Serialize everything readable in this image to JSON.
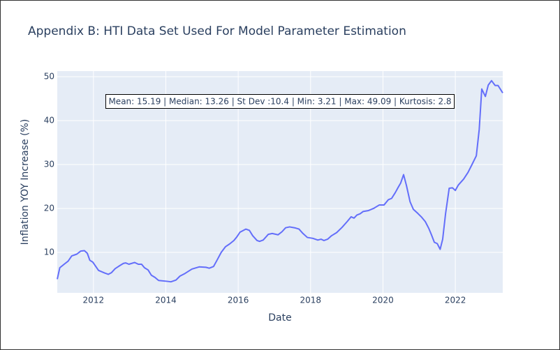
{
  "chart_data": {
    "type": "line",
    "title": "Appendix B: HTI Data Set Used For Model Parameter Estimation",
    "x_label": "Date",
    "y_label": "Inflation YOY Increase (%)",
    "annotation": "Mean: 15.19 | Median: 13.26 | St Dev :10.4 | Min: 3.21 | Max: 49.09 | Kurtosis: 2.8",
    "grid": true,
    "xlim": [
      2011.0,
      2023.31
    ],
    "xticks": [
      2012,
      2014,
      2016,
      2018,
      2020,
      2022
    ],
    "ylim": [
      0.79,
      51.27
    ],
    "yticks": [
      10,
      20,
      30,
      40,
      50
    ],
    "x": [
      2011.0,
      2011.07,
      2011.19,
      2011.3,
      2011.4,
      2011.54,
      2011.65,
      2011.75,
      2011.83,
      2011.9,
      2011.98,
      2012.14,
      2012.31,
      2012.41,
      2012.5,
      2012.6,
      2012.73,
      2012.83,
      2012.89,
      2012.98,
      2013.14,
      2013.24,
      2013.33,
      2013.41,
      2013.51,
      2013.6,
      2013.7,
      2013.8,
      2014.05,
      2014.14,
      2014.28,
      2014.39,
      2014.53,
      2014.72,
      2014.92,
      2015.11,
      2015.2,
      2015.32,
      2015.42,
      2015.53,
      2015.65,
      2015.76,
      2015.88,
      2015.96,
      2016.05,
      2016.21,
      2016.31,
      2016.4,
      2016.52,
      2016.59,
      2016.69,
      2016.83,
      2016.94,
      2017.1,
      2017.21,
      2017.31,
      2017.42,
      2017.56,
      2017.68,
      2017.79,
      2017.91,
      2018.06,
      2018.2,
      2018.29,
      2018.37,
      2018.47,
      2018.58,
      2018.72,
      2018.87,
      2019.01,
      2019.12,
      2019.2,
      2019.28,
      2019.37,
      2019.45,
      2019.59,
      2019.74,
      2019.9,
      2020.03,
      2020.15,
      2020.24,
      2020.34,
      2020.42,
      2020.49,
      2020.57,
      2020.65,
      2020.75,
      2020.84,
      2020.96,
      2021.07,
      2021.17,
      2021.27,
      2021.34,
      2021.42,
      2021.5,
      2021.58,
      2021.65,
      2021.73,
      2021.83,
      2021.92,
      2022.0,
      2022.08,
      2022.23,
      2022.35,
      2022.46,
      2022.58,
      2022.66,
      2022.73,
      2022.83,
      2022.91,
      2023.0,
      2023.1,
      2023.18,
      2023.31
    ],
    "series": [
      {
        "color": "#636efa",
        "values": [
          3.9,
          6.5,
          7.3,
          8.0,
          9.2,
          9.6,
          10.3,
          10.4,
          9.8,
          8.2,
          7.8,
          5.9,
          5.3,
          5.0,
          5.4,
          6.3,
          7.0,
          7.5,
          7.6,
          7.3,
          7.7,
          7.3,
          7.3,
          6.5,
          6.0,
          4.8,
          4.3,
          3.6,
          3.4,
          3.3,
          3.7,
          4.6,
          5.2,
          6.2,
          6.7,
          6.6,
          6.4,
          6.8,
          8.3,
          10.0,
          11.3,
          11.9,
          12.7,
          13.5,
          14.6,
          15.3,
          15.0,
          13.8,
          12.7,
          12.5,
          12.8,
          14.1,
          14.3,
          14.0,
          14.7,
          15.6,
          15.8,
          15.6,
          15.3,
          14.3,
          13.4,
          13.2,
          12.8,
          13.0,
          12.7,
          13.0,
          13.8,
          14.5,
          15.7,
          17.0,
          18.1,
          17.8,
          18.5,
          18.8,
          19.3,
          19.5,
          20.0,
          20.8,
          20.8,
          22.0,
          22.3,
          23.6,
          24.8,
          25.8,
          27.7,
          25.2,
          21.5,
          19.8,
          18.9,
          18.0,
          17.0,
          15.4,
          14.0,
          12.3,
          12.0,
          10.7,
          13.0,
          18.8,
          24.6,
          24.7,
          24.1,
          25.3,
          26.7,
          28.2,
          30.0,
          32.0,
          38.0,
          47.2,
          45.5,
          48.1,
          49.1,
          48.0,
          48.0,
          46.3
        ]
      }
    ]
  }
}
